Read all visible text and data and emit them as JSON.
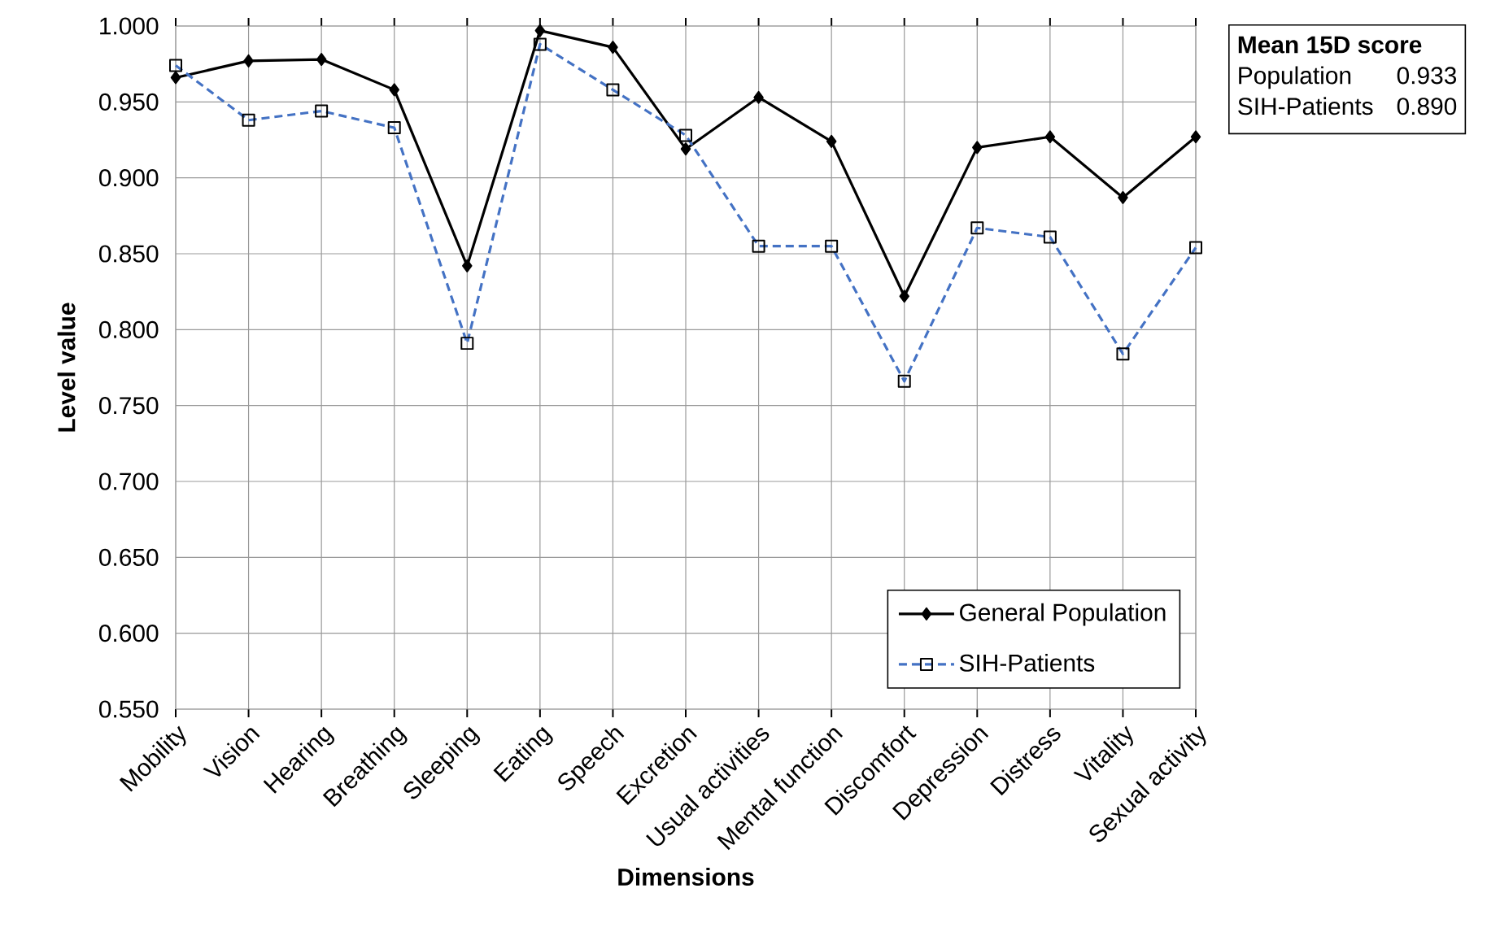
{
  "chart_data": {
    "type": "line",
    "xlabel": "Dimensions",
    "ylabel": "Level value",
    "categories": [
      "Mobility",
      "Vision",
      "Hearing",
      "Breathing",
      "Sleeping",
      "Eating",
      "Speech",
      "Excretion",
      "Usual activities",
      "Mental function",
      "Discomfort",
      "Depression",
      "Distress",
      "Vitality",
      "Sexual activity"
    ],
    "series": [
      {
        "name": "General Population",
        "color": "#000000",
        "marker": "diamond",
        "line_style": "solid",
        "values": [
          0.966,
          0.977,
          0.978,
          0.958,
          0.842,
          0.997,
          0.986,
          0.919,
          0.953,
          0.924,
          0.822,
          0.92,
          0.927,
          0.887,
          0.927
        ]
      },
      {
        "name": "SIH-Patients",
        "color": "#4472c4",
        "marker": "square",
        "line_style": "dashed",
        "values": [
          0.974,
          0.938,
          0.944,
          0.933,
          0.791,
          0.988,
          0.958,
          0.928,
          0.855,
          0.855,
          0.766,
          0.867,
          0.861,
          0.784,
          0.854
        ]
      }
    ],
    "ylim": [
      0.55,
      1.0
    ],
    "yticks": [
      {
        "value": 0.55,
        "label": "0.550"
      },
      {
        "value": 0.6,
        "label": "0.600"
      },
      {
        "value": 0.65,
        "label": "0.650"
      },
      {
        "value": 0.7,
        "label": "0.700"
      },
      {
        "value": 0.75,
        "label": "0.750"
      },
      {
        "value": 0.8,
        "label": "0.800"
      },
      {
        "value": 0.85,
        "label": "0.850"
      },
      {
        "value": 0.9,
        "label": "0.900"
      },
      {
        "value": 0.95,
        "label": "0.950"
      },
      {
        "value": 1.0,
        "label": "1.000"
      }
    ],
    "grid": true,
    "legend": "bottom right",
    "annotations": [
      "Mean 15D score",
      "Population",
      "0.933",
      "SIH-Patients",
      "0.890"
    ]
  }
}
